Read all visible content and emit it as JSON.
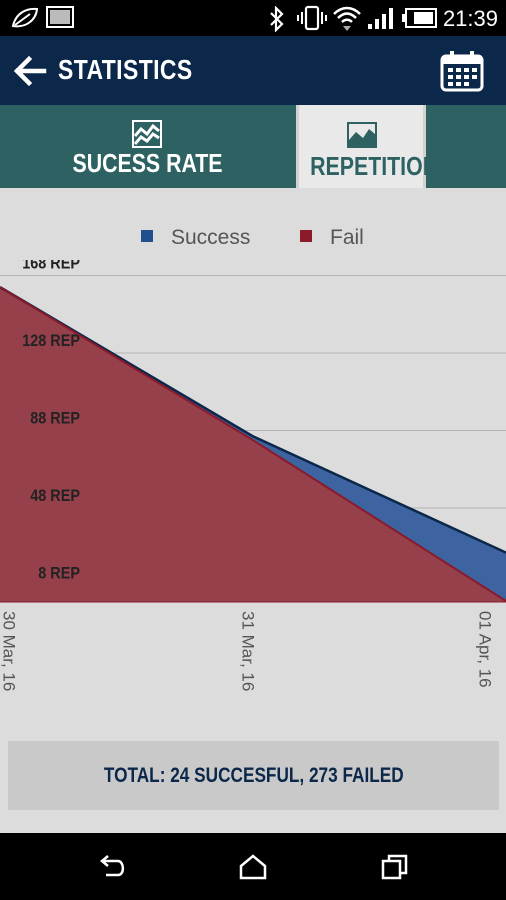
{
  "status_bar": {
    "time": "21:39",
    "icons": [
      "leaf-icon",
      "image-icon",
      "bluetooth-icon",
      "vibrate-icon",
      "wifi-icon",
      "signal-icon",
      "battery-icon"
    ]
  },
  "app_bar": {
    "title": "STATISTICS",
    "back_icon": "arrow-left-icon",
    "calendar_icon": "calendar-icon"
  },
  "tabs": [
    {
      "label": "SUCESS RATE",
      "icon": "line-chart-icon",
      "selected": false
    },
    {
      "label": "REPETITION",
      "icon": "area-chart-icon",
      "selected": true
    }
  ],
  "legend": [
    {
      "label": "Success",
      "color": "#1f4f8f"
    },
    {
      "label": "Fail",
      "color": "#8b1a2b"
    }
  ],
  "chart_data": {
    "type": "area",
    "x": [
      "30 Mar, 16",
      "31 Mar, 16",
      "01 Apr, 16"
    ],
    "y_ticks": [
      8,
      48,
      88,
      128,
      168
    ],
    "y_tick_labels": [
      "8 REP",
      "48 REP",
      "88 REP",
      "128 REP",
      "168 REP"
    ],
    "ylim": [
      -0.5,
      176
    ],
    "series": [
      {
        "name": "Success",
        "color": "#3d64a0",
        "line_color": "#0b2749",
        "values": [
          162,
          85,
          25
        ]
      },
      {
        "name": "Fail",
        "color": "#96404c",
        "line_color": "#8b1a2b",
        "values": [
          162,
          83,
          0
        ]
      }
    ],
    "grid": true,
    "legend_position": "top-center"
  },
  "summary": {
    "total_text": "TOTAL: 24 SUCCESFUL, 273 FAILED"
  },
  "nav_bar": {
    "buttons": [
      "back-nav-icon",
      "home-icon",
      "recent-apps-icon"
    ]
  }
}
